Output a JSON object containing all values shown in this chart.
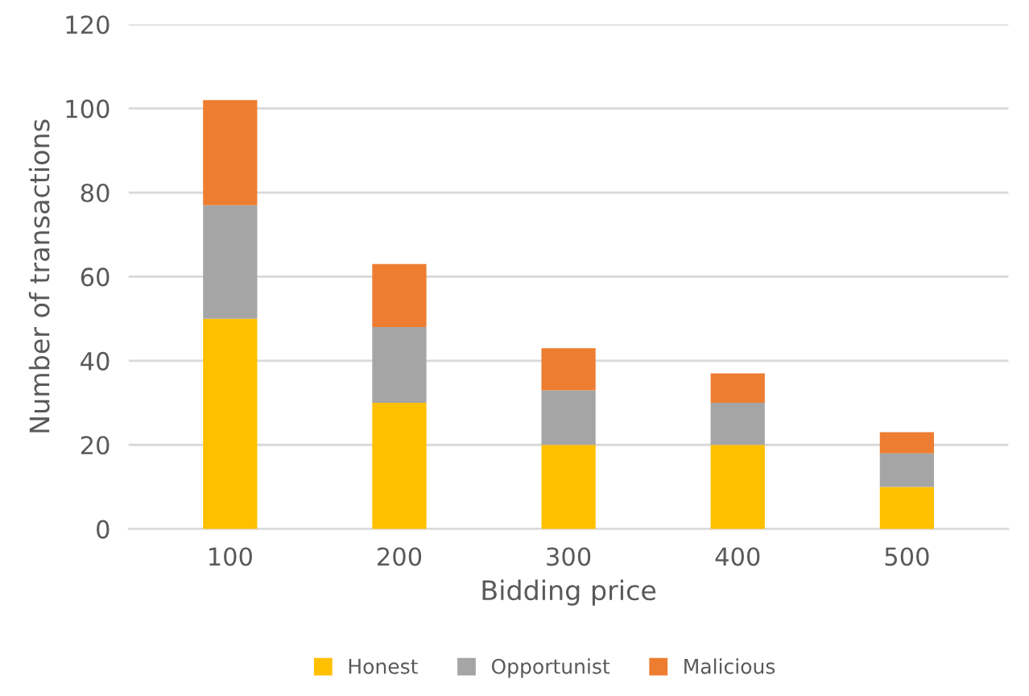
{
  "chart_data": {
    "type": "bar",
    "stacked": true,
    "xlabel": "Bidding price",
    "ylabel": "Number of transactions",
    "categories": [
      "100",
      "200",
      "300",
      "400",
      "500"
    ],
    "series": [
      {
        "name": "Honest",
        "color": "#ffc000",
        "values": [
          50,
          30,
          20,
          20,
          10
        ]
      },
      {
        "name": "Opportunist",
        "color": "#a5a5a5",
        "values": [
          27,
          18,
          13,
          10,
          8
        ]
      },
      {
        "name": "Malicious",
        "color": "#ed7d31",
        "values": [
          25,
          15,
          10,
          7,
          5
        ]
      }
    ],
    "ylim": [
      0,
      120
    ],
    "yticks": [
      0,
      20,
      40,
      60,
      80,
      100,
      120
    ],
    "grid": "y",
    "legend": "bottom"
  }
}
